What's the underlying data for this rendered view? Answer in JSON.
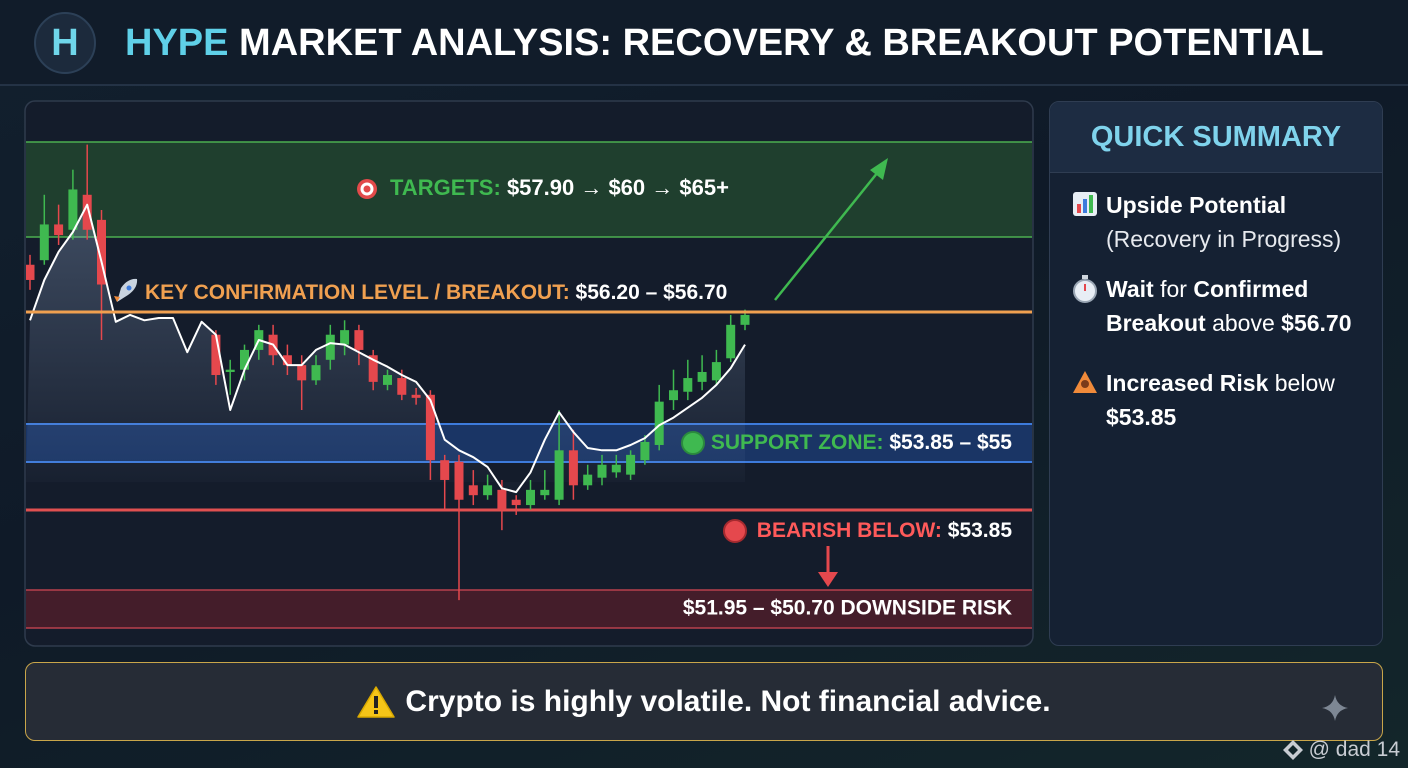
{
  "header": {
    "logo": "H",
    "title_highlight": "HYPE",
    "title": "MARKET ANALYSIS: RECOVERY & BREAKOUT POTENTIAL"
  },
  "chart_data": {
    "type": "candlestick",
    "ylim": [
      52.07,
      59.21
    ],
    "up_color": "#3fb950",
    "down_color": "#e5484d",
    "open": [
      57.07,
      57.13,
      57.6,
      57.53,
      57.99,
      57.66,
      null,
      null,
      null,
      null,
      null,
      null,
      null,
      56.15,
      55.66,
      55.69,
      55.95,
      56.15,
      55.88,
      55.75,
      55.55,
      55.82,
      56.02,
      56.21,
      55.88,
      55.49,
      55.58,
      55.36,
      55.36,
      54.5,
      54.48,
      54.17,
      54.04,
      54.11,
      53.98,
      53.91,
      54.04,
      53.98,
      54.63,
      54.17,
      54.27,
      54.34,
      54.31,
      54.5,
      54.7,
      55.29,
      55.4,
      55.53,
      55.55,
      55.84,
      56.28
    ],
    "high": [
      57.2,
      57.99,
      57.86,
      58.32,
      58.65,
      57.79,
      null,
      null,
      null,
      null,
      null,
      null,
      null,
      56.21,
      55.82,
      56.02,
      56.28,
      56.28,
      56.02,
      55.88,
      55.88,
      56.28,
      56.34,
      56.28,
      55.95,
      55.69,
      55.69,
      55.45,
      55.42,
      54.57,
      54.57,
      54.37,
      54.31,
      54.24,
      54.04,
      54.24,
      54.37,
      55.16,
      54.9,
      54.44,
      54.57,
      54.57,
      54.63,
      54.83,
      55.49,
      55.69,
      55.82,
      55.88,
      55.95,
      56.41,
      56.48
    ],
    "low": [
      56.74,
      57.07,
      57.33,
      57.4,
      57.4,
      56.08,
      null,
      null,
      null,
      null,
      null,
      null,
      null,
      55.49,
      55.36,
      55.55,
      55.82,
      55.75,
      55.62,
      55.16,
      55.49,
      55.69,
      55.88,
      55.75,
      55.42,
      55.42,
      55.29,
      55.23,
      54.24,
      53.85,
      52.66,
      53.91,
      53.98,
      53.58,
      53.78,
      53.85,
      53.98,
      53.91,
      53.98,
      54.11,
      54.17,
      54.27,
      54.24,
      54.44,
      54.63,
      55.16,
      55.29,
      55.42,
      55.49,
      55.79,
      56.21
    ],
    "close": [
      56.87,
      57.6,
      57.46,
      58.06,
      57.53,
      56.81,
      null,
      null,
      null,
      null,
      null,
      null,
      null,
      55.62,
      55.69,
      55.95,
      56.21,
      55.88,
      55.75,
      55.55,
      55.75,
      56.15,
      56.21,
      55.95,
      55.53,
      55.62,
      55.36,
      55.32,
      54.5,
      54.24,
      53.98,
      54.04,
      54.17,
      53.85,
      53.91,
      54.11,
      54.11,
      54.63,
      54.17,
      54.31,
      54.44,
      54.44,
      54.57,
      54.74,
      55.27,
      55.42,
      55.58,
      55.66,
      55.79,
      56.28,
      56.41
    ],
    "line": {
      "color": "#ffffff",
      "values": [
        56.34,
        56.87,
        57.24,
        57.5,
        57.86,
        57.11,
        56.32,
        56.41,
        56.34,
        56.37,
        56.37,
        55.92,
        56.32,
        56.15,
        55.16,
        55.69,
        56.08,
        56.02,
        55.75,
        55.75,
        55.95,
        56.04,
        56.02,
        55.92,
        55.82,
        55.73,
        55.62,
        55.53,
        55.29,
        54.77,
        54.63,
        54.54,
        54.41,
        54.13,
        54.08,
        54.34,
        54.77,
        55.13,
        54.87,
        54.66,
        54.63,
        54.63,
        54.7,
        54.79,
        54.96,
        55.06,
        55.19,
        55.32,
        55.49,
        55.71,
        56.02
      ]
    },
    "annotations": {
      "targets": {
        "label": "TARGETS:",
        "value": "$57.90 → $60 → $65+"
      },
      "key_level": {
        "label": "KEY CONFIRMATION LEVEL / BREAKOUT:",
        "value": "$56.20 – $56.70"
      },
      "support": {
        "label": "SUPPORT ZONE:",
        "value": "$53.85 – $55"
      },
      "bearish": {
        "label": "BEARISH BELOW:",
        "value": "$53.85"
      },
      "downside": "$51.95 – $50.70 DOWNSIDE RISK"
    }
  },
  "summary": {
    "title": "QUICK SUMMARY",
    "items": [
      {
        "parts": [
          {
            "text": "Upside Potential",
            "bold": true
          }
        ],
        "sub": "(Recovery in Progress)"
      },
      {
        "parts": [
          {
            "text": "Wait",
            "bold": true
          },
          {
            "text": " for ",
            "bold": false
          },
          {
            "text": "Confirmed Breakout",
            "bold": true
          },
          {
            "text": " above ",
            "bold": false
          },
          {
            "text": "$56.70",
            "bold": true
          }
        ]
      },
      {
        "parts": [
          {
            "text": "Increased Risk",
            "bold": true
          },
          {
            "text": " below ",
            "bold": false
          },
          {
            "text": "$53.85",
            "bold": true
          }
        ]
      }
    ]
  },
  "footer": {
    "text": "Crypto is highly volatile. Not financial advice."
  },
  "watermark": "@ dad 14"
}
